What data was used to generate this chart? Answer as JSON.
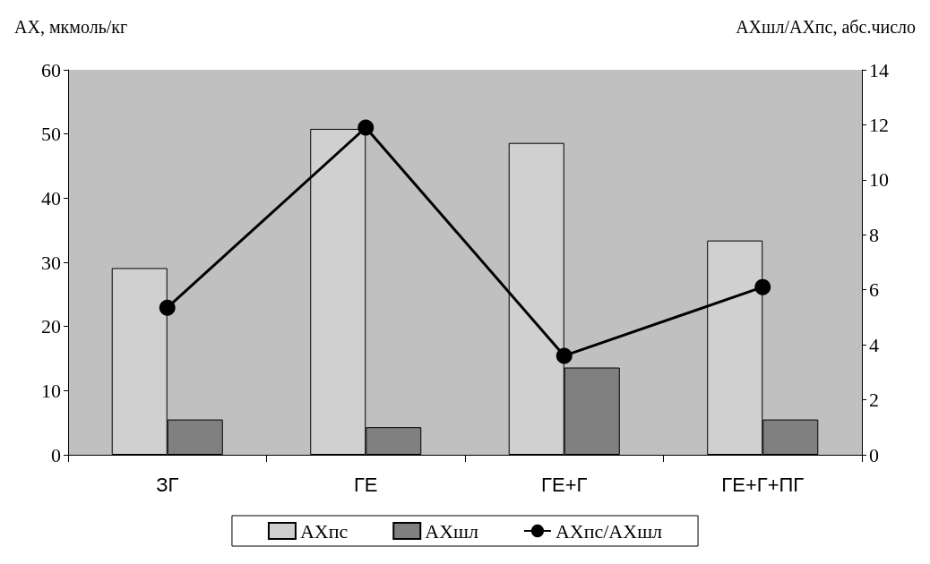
{
  "chart_data": {
    "type": "bar",
    "ylabel": "АХ, мкмоль/кг",
    "y2label": "АХшл/АХпс, абс.число",
    "categories": [
      "ЗГ",
      "ГЕ",
      "ГЕ+Г",
      "ГЕ+Г+ПГ"
    ],
    "series": [
      {
        "name": "АХпс",
        "color": "#d0d0d0",
        "values": [
          29.1,
          50.8,
          48.6,
          33.4
        ]
      },
      {
        "name": "АХшл",
        "color": "#808080",
        "values": [
          5.5,
          4.3,
          13.6,
          5.5
        ]
      },
      {
        "name": "АХпс/АХшл",
        "type": "line",
        "axis": "y2",
        "color": "#000000",
        "values": [
          5.35,
          11.9,
          3.6,
          6.1
        ]
      }
    ],
    "ylim": [
      0,
      60
    ],
    "yticks": [
      0,
      10,
      20,
      30,
      40,
      50,
      60
    ],
    "y2lim": [
      0,
      14
    ],
    "y2ticks": [
      0,
      2,
      4,
      6,
      8,
      10,
      12,
      14
    ],
    "grid": false,
    "legend": "bottom",
    "marker": "circle",
    "line_style": "solid"
  }
}
